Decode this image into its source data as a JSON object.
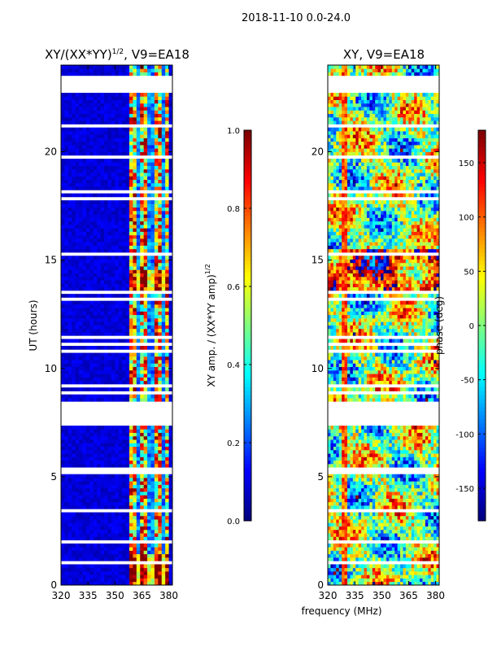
{
  "figure_title": "2018-11-10 0.0-24.0",
  "colors": {
    "background": "#ffffff",
    "axis": "#000000",
    "jet": [
      "#00007f",
      "#0000ff",
      "#007fff",
      "#00ffff",
      "#7fff7f",
      "#ffff00",
      "#ff7f00",
      "#ff0000",
      "#7f0000"
    ]
  },
  "chart_data": [
    {
      "type": "heatmap",
      "panel": "left",
      "title": "XY/(XX*YY)^1/2, V9=EA18",
      "title_main": "XY/(XX*YY)",
      "title_sup": "1/2",
      "title_tail": ", V9=EA18",
      "ylabel": "UT (hours)",
      "xlabel": "",
      "xlim": [
        320,
        382
      ],
      "ylim": [
        0,
        24
      ],
      "xticks": [
        320,
        335,
        350,
        365,
        380
      ],
      "yticks": [
        0,
        5,
        10,
        15,
        20
      ],
      "colorbar": {
        "label_main": "XY amp. / (XX*YY amp)",
        "label_sup": "1/2",
        "range": [
          0.0,
          1.0
        ],
        "ticks": [
          "0.0",
          "0.2",
          "0.4",
          "0.6",
          "0.8",
          "1.0"
        ],
        "tick_values": [
          0.0,
          0.2,
          0.4,
          0.6,
          0.8,
          1.0
        ]
      },
      "flagged_gaps_hours": [
        [
          7.3,
          8.45
        ],
        [
          22.85,
          23.55
        ],
        [
          1.95,
          2.15
        ],
        [
          13.4,
          13.55
        ]
      ],
      "bright_band_mhz": [
        358,
        380
      ],
      "typical_background_amp": 0.05,
      "band_amp_range": [
        0.35,
        1.0
      ]
    },
    {
      "type": "heatmap",
      "panel": "right",
      "title": "XY, V9=EA18",
      "ylabel": "",
      "xlabel": "frequency (MHz)",
      "xlim": [
        320,
        382
      ],
      "ylim": [
        0,
        24
      ],
      "xticks": [
        320,
        335,
        350,
        365,
        380
      ],
      "yticks": [
        0,
        5,
        10,
        15,
        20
      ],
      "colorbar": {
        "label": "phase (deg)",
        "range": [
          -180,
          180
        ],
        "ticks": [
          "-150",
          "-100",
          "-50",
          "0",
          "50",
          "100",
          "150"
        ],
        "tick_values": [
          -150,
          -100,
          -50,
          0,
          50,
          100,
          150
        ]
      },
      "flagged_gaps_hours": [
        [
          7.3,
          8.45
        ],
        [
          22.85,
          23.55
        ],
        [
          1.95,
          2.15
        ],
        [
          13.4,
          13.55
        ]
      ],
      "phase_range_deg": [
        -180,
        180
      ]
    }
  ]
}
